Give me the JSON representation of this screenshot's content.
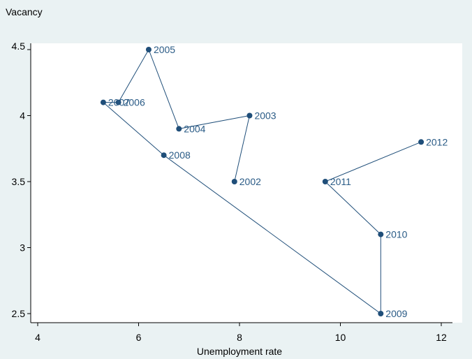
{
  "chart_data": {
    "type": "scatter",
    "title": "",
    "xlabel": "Unemployment rate",
    "ylabel": "Vacancy",
    "xlim": [
      4,
      12
    ],
    "ylim": [
      2.5,
      4.5
    ],
    "x_ticks": [
      {
        "value": 4,
        "label": "4"
      },
      {
        "value": 6,
        "label": "6"
      },
      {
        "value": 8,
        "label": "8"
      },
      {
        "value": 10,
        "label": "10"
      },
      {
        "value": 12,
        "label": "12"
      }
    ],
    "y_ticks": [
      {
        "value": 2.5,
        "label": "2.5"
      },
      {
        "value": 3,
        "label": "3"
      },
      {
        "value": 3.5,
        "label": "3.5"
      },
      {
        "value": 4,
        "label": "4"
      },
      {
        "value": 4.5,
        "label": "4.5"
      }
    ],
    "connected": true,
    "grid": false,
    "legend": "none",
    "colors": {
      "series": "#1f4e79",
      "label": "#2a5b86",
      "background": "#eaf2f3",
      "plot": "#ffffff",
      "axis": "#000000"
    },
    "points": [
      {
        "label": "2002",
        "x": 7.9,
        "y": 3.5
      },
      {
        "label": "2003",
        "x": 8.2,
        "y": 4.0
      },
      {
        "label": "2004",
        "x": 6.8,
        "y": 3.9
      },
      {
        "label": "2005",
        "x": 6.2,
        "y": 4.5
      },
      {
        "label": "2006",
        "x": 5.6,
        "y": 4.1
      },
      {
        "label": "2007",
        "x": 5.3,
        "y": 4.1
      },
      {
        "label": "2008",
        "x": 6.5,
        "y": 3.7
      },
      {
        "label": "2009",
        "x": 10.8,
        "y": 2.5
      },
      {
        "label": "2010",
        "x": 10.8,
        "y": 3.1
      },
      {
        "label": "2011",
        "x": 9.7,
        "y": 3.5
      },
      {
        "label": "2012",
        "x": 11.6,
        "y": 3.8
      }
    ]
  }
}
